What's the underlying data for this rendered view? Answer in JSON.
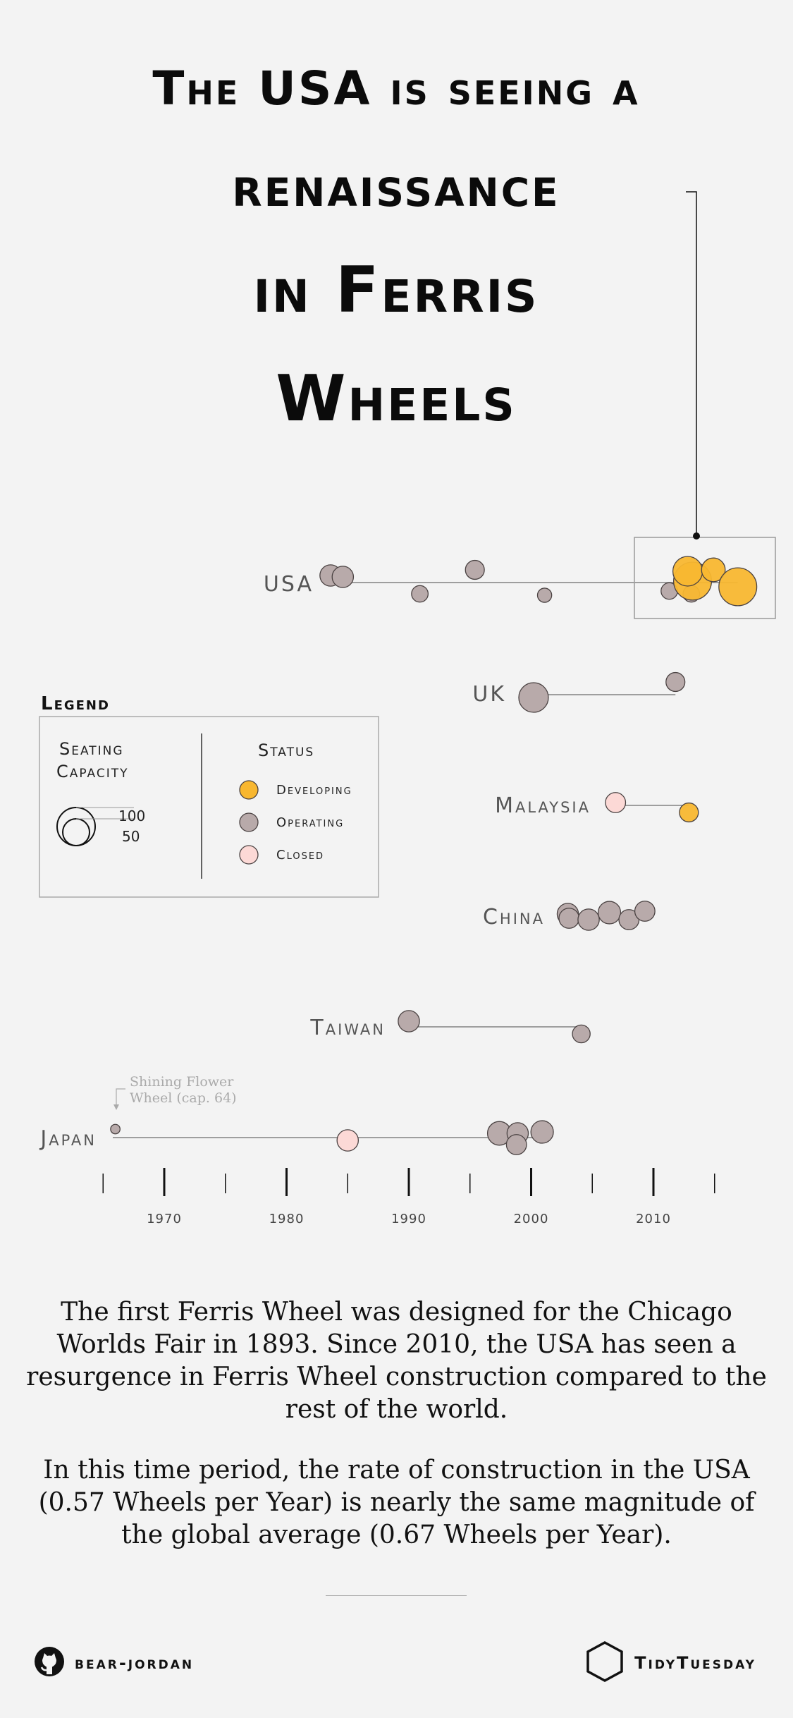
{
  "title_lines": [
    "The USA is seeing a",
    "renaissance",
    "in Ferris",
    "Wheels"
  ],
  "legend": {
    "title": "Legend",
    "seating_heading_1": "Seating",
    "seating_heading_2": "Capacity",
    "size_large": "100",
    "size_small": "50",
    "status_heading": "Status",
    "statuses": [
      "Developing",
      "Operating",
      "Closed"
    ]
  },
  "colors": {
    "Developing": "#f8b730",
    "Operating": "#b8aaaa",
    "Closed": "#fcd9d6",
    "outline": "#4a4242",
    "line": "#9e9e9e",
    "background": "#f3f3f3"
  },
  "annotation": {
    "text_1": "Shining Flower",
    "text_2": "Wheel (cap. 64)"
  },
  "chart_data": {
    "type": "scatter",
    "x_ticks": [
      1970,
      1980,
      1990,
      2000,
      2010
    ],
    "x_minor_ticks": [
      1965,
      1975,
      1985,
      1995,
      2005,
      2015
    ],
    "xlim": [
      1962,
      2018
    ],
    "size_note": "radius proportional to seating capacity",
    "rows": [
      {
        "country": "USA",
        "points": [
          {
            "year": 1983.6,
            "capacity": 36,
            "status": "Operating",
            "offset": 10
          },
          {
            "year": 1984.6,
            "capacity": 36,
            "status": "Operating",
            "offset": 8
          },
          {
            "year": 1990.9,
            "capacity": 28,
            "status": "Operating",
            "offset": -16
          },
          {
            "year": 1995.4,
            "capacity": 32,
            "status": "Operating",
            "offset": 18
          },
          {
            "year": 2001.1,
            "capacity": 24,
            "status": "Operating",
            "offset": -18
          },
          {
            "year": 2011.3,
            "capacity": 28,
            "status": "Operating",
            "offset": -12
          },
          {
            "year": 2013.1,
            "capacity": 28,
            "status": "Operating",
            "offset": -16
          },
          {
            "year": 2013.2,
            "capacity": 64,
            "status": "Developing",
            "offset": 2
          },
          {
            "year": 2012.8,
            "capacity": 50,
            "status": "Developing",
            "offset": 16
          },
          {
            "year": 2014.9,
            "capacity": 40,
            "status": "Developing",
            "offset": 18
          },
          {
            "year": 2016.9,
            "capacity": 64,
            "status": "Developing",
            "offset": -6
          }
        ]
      },
      {
        "country": "UK",
        "points": [
          {
            "year": 2000.2,
            "capacity": 50,
            "status": "Operating",
            "offset": -4
          },
          {
            "year": 2011.8,
            "capacity": 32,
            "status": "Operating",
            "offset": 18
          }
        ]
      },
      {
        "country": "Malaysia",
        "points": [
          {
            "year": 2006.9,
            "capacity": 34,
            "status": "Closed",
            "offset": 4
          },
          {
            "year": 2012.9,
            "capacity": 32,
            "status": "Developing",
            "offset": -10
          }
        ]
      },
      {
        "country": "China",
        "points": [
          {
            "year": 2003.0,
            "capacity": 36,
            "status": "Operating",
            "offset": 4
          },
          {
            "year": 2003.1,
            "capacity": 34,
            "status": "Operating",
            "offset": -2
          },
          {
            "year": 2004.7,
            "capacity": 36,
            "status": "Operating",
            "offset": -4
          },
          {
            "year": 2006.4,
            "capacity": 38,
            "status": "Operating",
            "offset": 6
          },
          {
            "year": 2008.0,
            "capacity": 34,
            "status": "Operating",
            "offset": -4
          },
          {
            "year": 2009.3,
            "capacity": 34,
            "status": "Operating",
            "offset": 8
          }
        ]
      },
      {
        "country": "Taiwan",
        "points": [
          {
            "year": 1990.0,
            "capacity": 36,
            "status": "Operating",
            "offset": 8
          },
          {
            "year": 2004.1,
            "capacity": 30,
            "status": "Operating",
            "offset": -10
          }
        ]
      },
      {
        "country": "Japan",
        "points": [
          {
            "year": 1966.0,
            "capacity": 16,
            "status": "Operating",
            "offset": 12
          },
          {
            "year": 1985.0,
            "capacity": 36,
            "status": "Closed",
            "offset": -4
          },
          {
            "year": 1997.4,
            "capacity": 40,
            "status": "Operating",
            "offset": 6
          },
          {
            "year": 1998.9,
            "capacity": 36,
            "status": "Operating",
            "offset": 6
          },
          {
            "year": 1998.8,
            "capacity": 34,
            "status": "Operating",
            "offset": -10
          },
          {
            "year": 2000.9,
            "capacity": 38,
            "status": "Operating",
            "offset": 8
          }
        ]
      }
    ]
  },
  "paragraphs": [
    "The first Ferris Wheel was designed for the Chicago Worlds Fair in 1893. Since 2010, the USA has seen a resurgence in Ferris Wheel construction compared to the rest of the world.",
    "In this time period, the rate of construction in the USA (0.57 Wheels per Year) is nearly the same magnitude of the global average (0.67 Wheels per Year)."
  ],
  "footer": {
    "author": "bear-jordan",
    "source": "TidyTuesday"
  }
}
